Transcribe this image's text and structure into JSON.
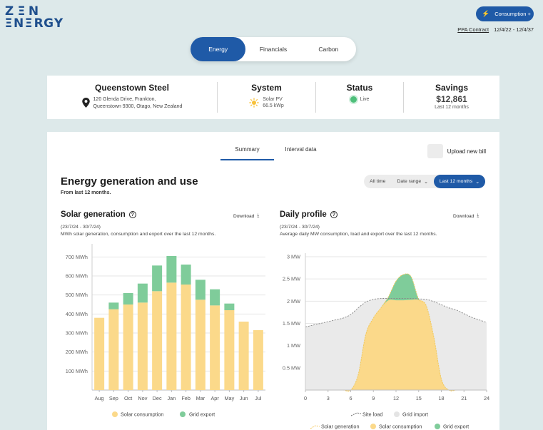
{
  "brand": {
    "logo_top": [
      "Z",
      "Ξ",
      "N"
    ],
    "logo_bottom": [
      "Ξ",
      "N",
      "Ξ",
      "R",
      "G",
      "Y"
    ]
  },
  "header": {
    "consumption_button": "Consumption +",
    "ppa_link": "PPA Contract",
    "contract_dates": "12/4/22 - 12/4/37"
  },
  "main_tabs": [
    {
      "label": "Energy",
      "active": true
    },
    {
      "label": "Financials",
      "active": false
    },
    {
      "label": "Carbon",
      "active": false
    }
  ],
  "summary": {
    "site": {
      "name": "Queenstown Steel",
      "address_line1": "120 Glenda Drive, Frankton,",
      "address_line2": "Queenstown 9300, Otago, New Zealand"
    },
    "system": {
      "title": "System",
      "type": "Solar PV",
      "capacity": "66.5 kWp"
    },
    "status": {
      "title": "Status",
      "value": "Live",
      "color": "#4ebf7a"
    },
    "savings": {
      "title": "Savings",
      "value": "$12,861",
      "period": "Last 12 months"
    }
  },
  "sub_tabs": [
    {
      "label": "Summary",
      "active": true
    },
    {
      "label": "Interval data",
      "active": false
    }
  ],
  "upload_label": "Upload new bill",
  "section": {
    "title": "Energy generation and use",
    "subtitle": "From last 12 months."
  },
  "filters": [
    {
      "label": "All time",
      "active": false,
      "chevron": false
    },
    {
      "label": "Date range",
      "active": false,
      "chevron": true
    },
    {
      "label": "Last 12 months",
      "active": true,
      "chevron": true
    }
  ],
  "colors": {
    "primary": "#1f5aa7",
    "solar": "#fbd98a",
    "solar_line": "#f4c75a",
    "export": "#7fcc9a",
    "site_load_fill": "#eaeaea",
    "background": "#dde9ea"
  },
  "solar_chart": {
    "title": "Solar generation",
    "download": "Download",
    "date_range": "(23/7/24 - 30/7/24)",
    "description": "MWh solar generation, consumption and export over the last 12 months.",
    "legend": [
      "Solar consumption",
      "Grid export"
    ]
  },
  "daily_chart": {
    "title": "Daily profile",
    "download": "Download",
    "date_range": "(23/7/24 - 30/7/24)",
    "description": "Average daily MW consumption, load and export over the last 12 months.",
    "legend_row1": [
      "Site load",
      "Grid import"
    ],
    "legend_row2": [
      "Solar generation",
      "Solar consumption",
      "Grid export"
    ]
  },
  "chart_data": [
    {
      "type": "bar",
      "title": "Solar generation",
      "categories": [
        "Aug",
        "Sep",
        "Oct",
        "Nov",
        "Dec",
        "Jan",
        "Feb",
        "Mar",
        "Apr",
        "May",
        "Jun",
        "Jul"
      ],
      "series": [
        {
          "name": "Solar consumption",
          "values": [
            380,
            425,
            450,
            460,
            520,
            565,
            555,
            475,
            445,
            420,
            360,
            315
          ]
        },
        {
          "name": "Grid export",
          "values": [
            0,
            35,
            60,
            100,
            135,
            140,
            105,
            105,
            85,
            35,
            0,
            0
          ]
        }
      ],
      "ylim": [
        0,
        750
      ],
      "yticks": [
        "100 MWh",
        "200 MWh",
        "300 MWh",
        "400 MWh",
        "500 MWh",
        "600 MWh",
        "700 MWh"
      ],
      "stacked": true,
      "grid": true,
      "legend": "bottom"
    },
    {
      "type": "area",
      "title": "Daily profile",
      "x": [
        0,
        1,
        2,
        3,
        4,
        5,
        6,
        7,
        8,
        9,
        10,
        11,
        12,
        13,
        14,
        15,
        16,
        17,
        18,
        19,
        20,
        21,
        22,
        23,
        24
      ],
      "xticks": [
        "0",
        "3",
        "6",
        "9",
        "12",
        "15",
        "18",
        "21",
        "24"
      ],
      "series": [
        {
          "name": "Site load",
          "values": [
            1.42,
            1.46,
            1.5,
            1.54,
            1.58,
            1.62,
            1.7,
            1.85,
            1.98,
            2.04,
            2.06,
            2.06,
            2.06,
            2.06,
            2.06,
            2.05,
            2.04,
            1.99,
            1.92,
            1.85,
            1.8,
            1.72,
            1.64,
            1.58,
            1.52
          ]
        },
        {
          "name": "Solar generation",
          "values": [
            0,
            0,
            0,
            0,
            0,
            0,
            0,
            0.35,
            1.25,
            1.62,
            1.85,
            2.1,
            2.45,
            2.6,
            2.55,
            2.05,
            1.9,
            1.2,
            0.25,
            0,
            0,
            0,
            0,
            0,
            0
          ]
        },
        {
          "name": "Solar consumption",
          "values": [
            0,
            0,
            0,
            0,
            0,
            0,
            0,
            0.35,
            1.25,
            1.62,
            1.85,
            2.02,
            2.02,
            2.02,
            2.03,
            2.03,
            1.9,
            1.2,
            0.25,
            0,
            0,
            0,
            0,
            0,
            0
          ]
        }
      ],
      "ylim": [
        0,
        3
      ],
      "yticks": [
        "0.5 MW",
        "1 MW",
        "1.5 MW",
        "2 MW",
        "2.5 MW",
        "3 MW"
      ],
      "grid": true,
      "legend": "bottom"
    }
  ]
}
